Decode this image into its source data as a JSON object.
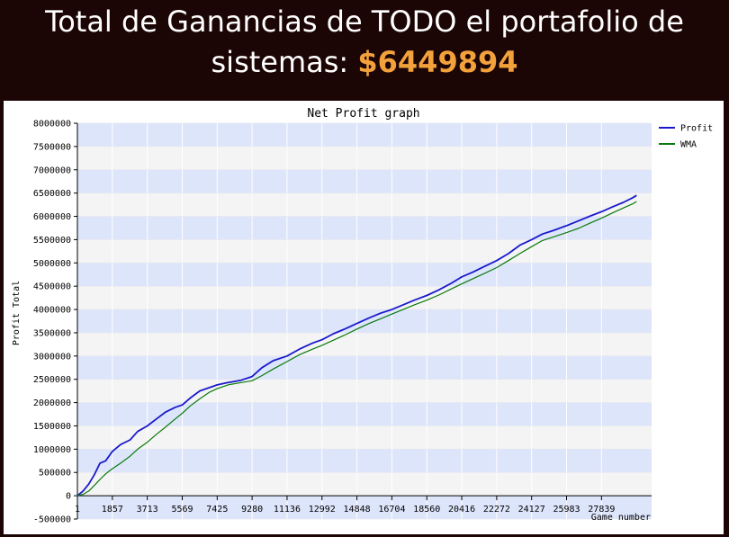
{
  "header": {
    "title_line1": "Total de Ganancias de TODO el portafolio de",
    "title_line2_prefix": "sistemas: ",
    "title_amount": "$6449894",
    "amount_color": "#f3a13b"
  },
  "chart_data": {
    "type": "line",
    "title": "Net Profit graph",
    "xlabel": "Game number",
    "ylabel": "Profit Total",
    "xlim": [
      0,
      30500
    ],
    "ylim": [
      -500000,
      8000000
    ],
    "yticks": [
      -500000,
      0,
      500000,
      1000000,
      1500000,
      2000000,
      2500000,
      3000000,
      3500000,
      4000000,
      4500000,
      5000000,
      5500000,
      6000000,
      6500000,
      7000000,
      7500000,
      8000000
    ],
    "ytick_labels": [
      "-500000",
      "0",
      "500000",
      "1000000",
      "1500000",
      "2000000",
      "2500000",
      "3000000",
      "3500000",
      "4000000",
      "4500000",
      "5000000",
      "5500000",
      "6000000",
      "6500000",
      "7000000",
      "7500000",
      "8000000"
    ],
    "xticks": [
      1,
      1857,
      3713,
      5569,
      7425,
      9280,
      11136,
      12992,
      14848,
      16704,
      18560,
      20416,
      22272,
      24127,
      25983,
      27839
    ],
    "xtick_labels": [
      "1",
      "1857",
      "3713",
      "5569",
      "7425",
      "9280",
      "11136",
      "12992",
      "14848",
      "16704",
      "18560",
      "20416",
      "22272",
      "24127",
      "25983",
      "27839"
    ],
    "grid": true,
    "legend_position": "right",
    "band_colors": [
      "#dde5fb",
      "#f4f4f4"
    ],
    "series": [
      {
        "name": "Profit",
        "color": "#1a1acc",
        "x": [
          0,
          300,
          600,
          900,
          1200,
          1500,
          1857,
          2300,
          2800,
          3200,
          3713,
          4200,
          4700,
          5200,
          5569,
          6000,
          6500,
          7000,
          7425,
          8000,
          8700,
          9280,
          9800,
          10400,
          11136,
          11800,
          12500,
          12992,
          13600,
          14200,
          14848,
          15500,
          16100,
          16704,
          17300,
          17900,
          18560,
          19200,
          19800,
          20416,
          21000,
          21600,
          22272,
          22900,
          23500,
          24127,
          24700,
          25300,
          25983,
          26600,
          27200,
          27839,
          28400,
          29000,
          29500,
          29700
        ],
        "y": [
          0,
          100000,
          250000,
          450000,
          700000,
          750000,
          950000,
          1100000,
          1200000,
          1380000,
          1500000,
          1650000,
          1800000,
          1900000,
          1950000,
          2100000,
          2250000,
          2320000,
          2380000,
          2430000,
          2480000,
          2560000,
          2750000,
          2900000,
          3000000,
          3150000,
          3280000,
          3350000,
          3480000,
          3580000,
          3700000,
          3820000,
          3920000,
          4000000,
          4100000,
          4200000,
          4300000,
          4420000,
          4550000,
          4700000,
          4800000,
          4920000,
          5050000,
          5200000,
          5380000,
          5500000,
          5620000,
          5700000,
          5800000,
          5900000,
          6000000,
          6100000,
          6200000,
          6300000,
          6400000,
          6450000
        ]
      },
      {
        "name": "WMA",
        "color": "#0a7a0a",
        "x": [
          0,
          300,
          600,
          900,
          1200,
          1500,
          1857,
          2300,
          2800,
          3200,
          3713,
          4200,
          4700,
          5200,
          5569,
          6000,
          6500,
          7000,
          7425,
          8000,
          8700,
          9280,
          9800,
          10400,
          11136,
          11800,
          12500,
          12992,
          13600,
          14200,
          14848,
          15500,
          16100,
          16704,
          17300,
          17900,
          18560,
          19200,
          19800,
          20416,
          21000,
          21600,
          22272,
          22900,
          23500,
          24127,
          24700,
          25300,
          25983,
          26600,
          27200,
          27839,
          28400,
          29000,
          29500,
          29700
        ],
        "y": [
          0,
          30000,
          100000,
          220000,
          350000,
          470000,
          580000,
          700000,
          850000,
          1000000,
          1150000,
          1320000,
          1480000,
          1650000,
          1770000,
          1930000,
          2080000,
          2220000,
          2300000,
          2380000,
          2430000,
          2470000,
          2580000,
          2720000,
          2880000,
          3030000,
          3150000,
          3230000,
          3340000,
          3450000,
          3580000,
          3700000,
          3800000,
          3900000,
          4000000,
          4100000,
          4200000,
          4310000,
          4430000,
          4550000,
          4660000,
          4770000,
          4900000,
          5050000,
          5200000,
          5350000,
          5480000,
          5560000,
          5650000,
          5740000,
          5850000,
          5960000,
          6070000,
          6180000,
          6270000,
          6320000
        ]
      }
    ]
  }
}
